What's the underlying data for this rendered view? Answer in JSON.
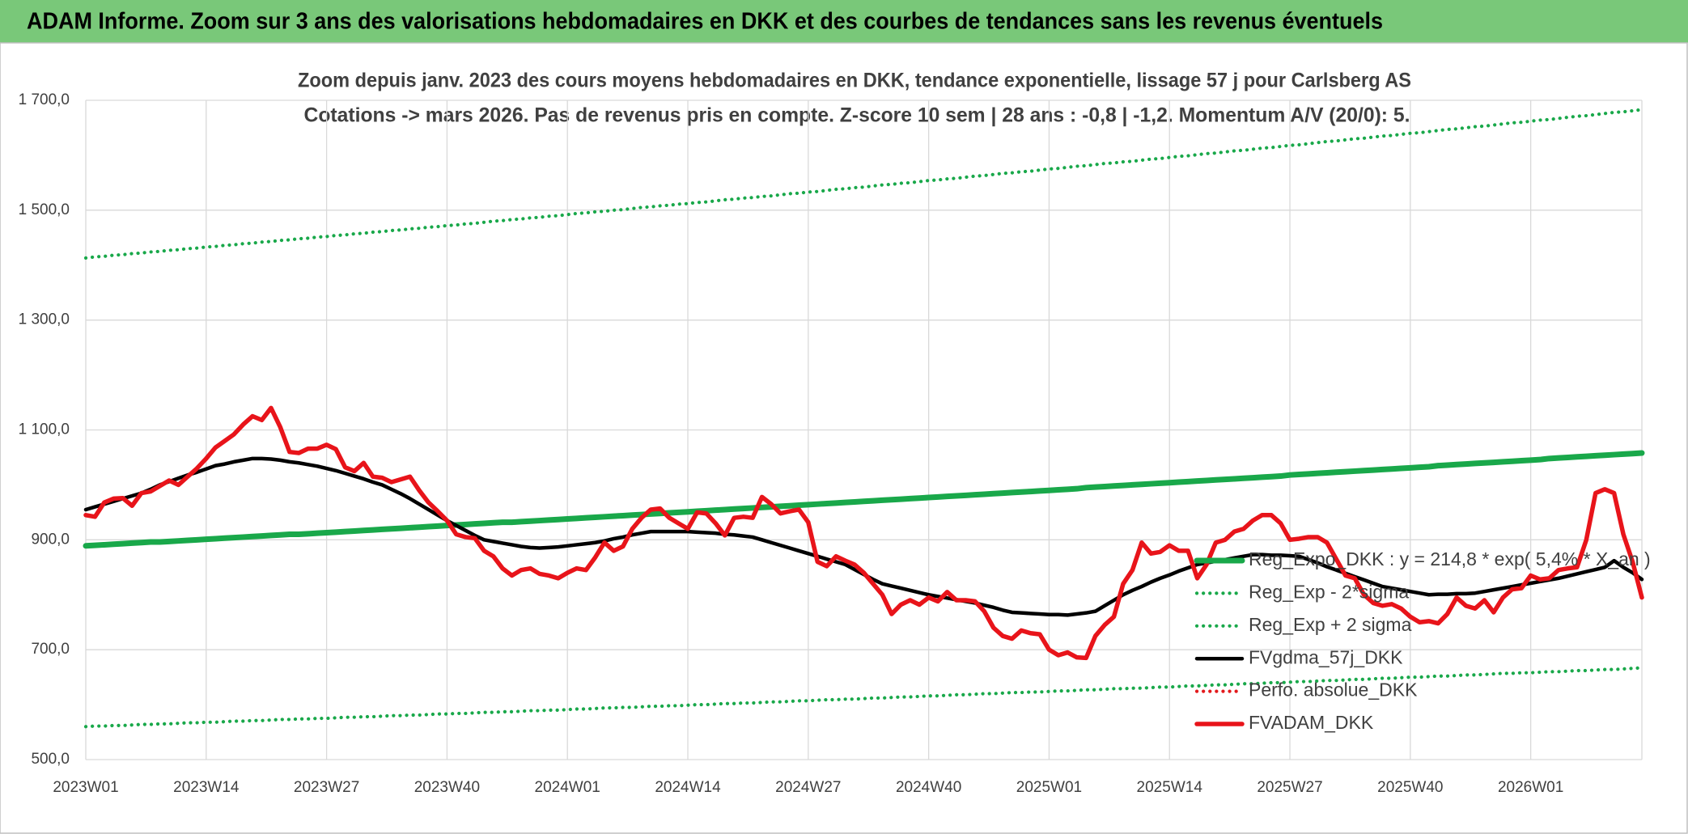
{
  "chart_data": {
    "type": "line",
    "title": "ADAM Informe. Zoom sur 3 ans des valorisations hebdomadaires en DKK et des courbes de tendances sans les revenus éventuels",
    "subtitle": [
      "Zoom depuis janv. 2023 des cours moyens hebdomadaires en DKK, tendance exponentielle, lissage 57 j pour Carlsberg AS",
      "Cotations -> mars 2026. Pas de revenus pris en compte. Z-score 10 sem | 28 ans : -0,8 | -1,2. Momentum A/V (20/0): 5."
    ],
    "ylim": [
      500,
      1700
    ],
    "yticks": [
      {
        "value": 500,
        "label": "500,0"
      },
      {
        "value": 700,
        "label": "700,0"
      },
      {
        "value": 900,
        "label": "900,0"
      },
      {
        "value": 1100,
        "label": "1 100,0"
      },
      {
        "value": 1300,
        "label": "1 300,0"
      },
      {
        "value": 1500,
        "label": "1 500,0"
      },
      {
        "value": 1700,
        "label": "1 700,0"
      }
    ],
    "grid": true,
    "categories": [
      "2023W01",
      null,
      null,
      null,
      null,
      null,
      null,
      null,
      null,
      null,
      null,
      null,
      null,
      "2023W14",
      null,
      null,
      null,
      null,
      null,
      null,
      null,
      null,
      null,
      null,
      null,
      null,
      "2023W27",
      null,
      null,
      null,
      null,
      null,
      null,
      null,
      null,
      null,
      null,
      null,
      null,
      "2023W40",
      null,
      null,
      null,
      null,
      null,
      null,
      null,
      null,
      null,
      null,
      null,
      null,
      "2024W01",
      null,
      null,
      null,
      null,
      null,
      null,
      null,
      null,
      null,
      null,
      null,
      null,
      "2024W14",
      null,
      null,
      null,
      null,
      null,
      null,
      null,
      null,
      null,
      null,
      null,
      null,
      "2024W27",
      null,
      null,
      null,
      null,
      null,
      null,
      null,
      null,
      null,
      null,
      null,
      null,
      "2024W40",
      null,
      null,
      null,
      null,
      null,
      null,
      null,
      null,
      null,
      null,
      null,
      null,
      "2025W01",
      null,
      null,
      null,
      null,
      null,
      null,
      null,
      null,
      null,
      null,
      null,
      null,
      "2025W14",
      null,
      null,
      null,
      null,
      null,
      null,
      null,
      null,
      null,
      null,
      null,
      null,
      "2025W27",
      null,
      null,
      null,
      null,
      null,
      null,
      null,
      null,
      null,
      null,
      null,
      null,
      "2025W40",
      null,
      null,
      null,
      null,
      null,
      null,
      null,
      null,
      null,
      null,
      null,
      null,
      "2026W01",
      null,
      null,
      null,
      null,
      null,
      null,
      null,
      null,
      null,
      null,
      null,
      null
    ],
    "series": [
      {
        "name": "Reg_Expo_DKK : y = 214,8 * exp( 5,4% * X_an )",
        "color": "#19a84a",
        "line_style": "solid",
        "values": [
          889,
          890,
          891,
          892,
          893,
          894,
          895,
          896,
          896,
          897,
          898,
          899,
          900,
          901,
          902,
          903,
          904,
          905,
          906,
          907,
          908,
          909,
          910,
          910,
          911,
          912,
          913,
          914,
          915,
          916,
          917,
          918,
          919,
          920,
          921,
          922,
          923,
          924,
          925,
          926,
          927,
          928,
          929,
          930,
          931,
          932,
          932,
          933,
          934,
          935,
          936,
          937,
          938,
          939,
          940,
          941,
          942,
          943,
          944,
          945,
          946,
          947,
          948,
          949,
          950,
          951,
          952,
          953,
          954,
          955,
          956,
          957,
          958,
          959,
          960,
          961,
          962,
          963,
          964,
          965,
          966,
          967,
          968,
          969,
          970,
          971,
          972,
          973,
          974,
          975,
          976,
          977,
          978,
          979,
          980,
          981,
          982,
          983,
          984,
          985,
          986,
          987,
          988,
          989,
          990,
          991,
          992,
          993,
          995,
          996,
          997,
          998,
          999,
          1000,
          1001,
          1002,
          1003,
          1004,
          1005,
          1006,
          1007,
          1008,
          1009,
          1010,
          1011,
          1012,
          1013,
          1014,
          1015,
          1016,
          1018,
          1019,
          1020,
          1021,
          1022,
          1023,
          1024,
          1025,
          1026,
          1027,
          1028,
          1029,
          1030,
          1031,
          1032,
          1033,
          1035,
          1036,
          1037,
          1038,
          1039,
          1040,
          1041,
          1042,
          1043,
          1044,
          1045,
          1046,
          1048,
          1049,
          1050,
          1051,
          1052,
          1053,
          1054,
          1055,
          1056,
          1057,
          1058
        ]
      },
      {
        "name": "Reg_Exp - 2*sigma",
        "color": "#19a84a",
        "line_style": "dotted",
        "values": [
          560,
          561,
          561,
          562,
          562,
          563,
          564,
          564,
          565,
          565,
          566,
          567,
          567,
          568,
          568,
          569,
          570,
          570,
          571,
          571,
          572,
          573,
          573,
          574,
          574,
          575,
          575,
          576,
          577,
          577,
          578,
          578,
          579,
          580,
          580,
          581,
          581,
          582,
          583,
          583,
          584,
          584,
          585,
          586,
          586,
          587,
          587,
          588,
          589,
          589,
          590,
          590,
          591,
          592,
          592,
          593,
          594,
          594,
          595,
          595,
          596,
          597,
          597,
          598,
          598,
          599,
          600,
          600,
          601,
          602,
          602,
          603,
          603,
          604,
          605,
          605,
          606,
          607,
          607,
          608,
          609,
          609,
          610,
          610,
          611,
          612,
          612,
          613,
          614,
          614,
          615,
          616,
          616,
          617,
          618,
          618,
          619,
          620,
          620,
          621,
          622,
          622,
          623,
          623,
          624,
          625,
          625,
          626,
          627,
          627,
          628,
          629,
          629,
          630,
          630,
          631,
          632,
          632,
          633,
          634,
          634,
          635,
          636,
          636,
          637,
          638,
          638,
          639,
          640,
          640,
          641,
          642,
          642,
          643,
          644,
          644,
          645,
          646,
          646,
          647,
          648,
          648,
          649,
          650,
          650,
          651,
          652,
          652,
          653,
          654,
          654,
          655,
          656,
          657,
          657,
          658,
          658,
          659,
          660,
          660,
          661,
          662,
          662,
          663,
          664,
          664,
          665,
          666,
          667
        ]
      },
      {
        "name": "Reg_Exp + 2 sigma",
        "color": "#19a84a",
        "line_style": "dotted",
        "values": [
          1413,
          1415,
          1416,
          1418,
          1419,
          1421,
          1422,
          1424,
          1425,
          1427,
          1428,
          1430,
          1431,
          1433,
          1434,
          1436,
          1437,
          1439,
          1440,
          1442,
          1443,
          1445,
          1446,
          1448,
          1449,
          1451,
          1452,
          1454,
          1455,
          1457,
          1458,
          1460,
          1461,
          1463,
          1464,
          1466,
          1467,
          1469,
          1470,
          1472,
          1473,
          1475,
          1476,
          1478,
          1480,
          1481,
          1483,
          1484,
          1486,
          1487,
          1489,
          1490,
          1492,
          1494,
          1495,
          1497,
          1498,
          1500,
          1501,
          1503,
          1505,
          1506,
          1508,
          1509,
          1511,
          1512,
          1514,
          1515,
          1517,
          1519,
          1520,
          1522,
          1523,
          1525,
          1526,
          1528,
          1530,
          1531,
          1533,
          1534,
          1536,
          1538,
          1539,
          1541,
          1542,
          1544,
          1546,
          1547,
          1549,
          1550,
          1552,
          1554,
          1555,
          1557,
          1558,
          1560,
          1562,
          1563,
          1565,
          1567,
          1568,
          1570,
          1571,
          1573,
          1575,
          1576,
          1578,
          1580,
          1581,
          1583,
          1585,
          1586,
          1588,
          1589,
          1591,
          1593,
          1594,
          1596,
          1598,
          1599,
          1601,
          1603,
          1604,
          1606,
          1608,
          1609,
          1611,
          1613,
          1614,
          1616,
          1618,
          1619,
          1621,
          1623,
          1625,
          1626,
          1628,
          1630,
          1631,
          1633,
          1635,
          1636,
          1638,
          1640,
          1641,
          1643,
          1645,
          1647,
          1648,
          1650,
          1652,
          1653,
          1655,
          1657,
          1659,
          1660,
          1662,
          1664,
          1665,
          1667,
          1669,
          1671,
          1672,
          1674,
          1676,
          1678,
          1679,
          1681,
          1683
        ]
      },
      {
        "name": "FVgdma_57j_DKK",
        "color": "#000000",
        "line_style": "solid",
        "values": [
          955,
          960,
          965,
          970,
          975,
          980,
          985,
          992,
          1000,
          1006,
          1012,
          1018,
          1023,
          1029,
          1035,
          1038,
          1042,
          1045,
          1048,
          1048,
          1047,
          1045,
          1042,
          1040,
          1037,
          1034,
          1030,
          1026,
          1021,
          1016,
          1011,
          1005,
          1000,
          992,
          984,
          975,
          965,
          955,
          945,
          935,
          926,
          917,
          908,
          900,
          897,
          894,
          891,
          888,
          886,
          885,
          886,
          887,
          889,
          891,
          893,
          895,
          898,
          902,
          905,
          909,
          912,
          915,
          915,
          915,
          915,
          915,
          914,
          913,
          912,
          910,
          909,
          907,
          905,
          900,
          895,
          890,
          885,
          880,
          875,
          870,
          865,
          860,
          855,
          846,
          837,
          828,
          820,
          816,
          812,
          808,
          804,
          800,
          797,
          794,
          791,
          788,
          785,
          781,
          777,
          772,
          768,
          767,
          766,
          765,
          764,
          764,
          763,
          765,
          767,
          770,
          780,
          790,
          800,
          808,
          815,
          823,
          830,
          836,
          843,
          849,
          855,
          858,
          861,
          864,
          867,
          870,
          873,
          873,
          872,
          872,
          871,
          870,
          864,
          858,
          851,
          845,
          839,
          833,
          827,
          821,
          815,
          812,
          809,
          806,
          803,
          800,
          801,
          801,
          802,
          802,
          803,
          806,
          809,
          812,
          815,
          818,
          821,
          824,
          827,
          830,
          834,
          838,
          842,
          846,
          850,
          862,
          850,
          840,
          828
        ]
      },
      {
        "name": "Perfo. absolue_DKK",
        "color": "#e31a1c",
        "line_style": "dotted",
        "values": [
          null,
          null,
          null,
          null,
          null,
          null,
          null,
          null,
          null,
          null,
          null,
          null,
          null,
          null,
          null,
          null,
          null,
          null,
          null,
          null,
          null,
          null,
          null,
          null,
          null,
          null,
          null,
          null,
          null,
          null,
          null,
          null,
          null,
          null,
          null,
          null,
          null,
          null,
          null,
          null,
          null,
          null,
          null,
          null,
          null,
          null,
          null,
          null,
          null,
          null,
          null,
          null,
          null,
          null,
          null,
          null,
          null,
          null,
          null,
          null,
          null,
          null,
          null,
          null,
          null,
          null,
          null,
          null,
          null,
          null,
          null,
          null,
          null,
          null,
          null,
          null,
          null,
          null,
          null,
          null,
          null,
          null,
          null,
          null,
          null,
          null,
          null,
          null,
          null,
          null,
          null,
          null,
          null,
          null,
          null,
          null,
          null,
          null,
          null,
          null,
          null,
          null,
          null,
          null,
          null,
          null,
          null,
          null,
          null,
          null,
          null,
          null,
          null,
          null,
          null,
          null,
          null,
          null,
          null,
          null,
          null,
          null,
          null,
          null,
          null,
          null,
          null,
          null,
          null,
          null,
          null,
          null,
          null,
          null,
          null,
          null,
          null,
          null,
          null,
          null,
          null,
          null,
          null,
          null,
          null,
          null,
          null,
          null,
          null,
          null,
          null,
          null,
          null,
          null,
          null,
          null,
          null,
          null,
          null,
          null,
          null,
          null,
          null,
          null,
          null,
          null,
          null,
          null,
          null
        ]
      },
      {
        "name": "FVADAM_DKK",
        "color": "#e8141a",
        "line_style": "solid",
        "values": [
          945,
          942,
          968,
          975,
          976,
          962,
          985,
          988,
          998,
          1008,
          1000,
          1015,
          1030,
          1048,
          1068,
          1080,
          1092,
          1110,
          1125,
          1118,
          1140,
          1105,
          1060,
          1058,
          1066,
          1066,
          1073,
          1065,
          1032,
          1025,
          1040,
          1015,
          1013,
          1005,
          1010,
          1015,
          990,
          968,
          952,
          935,
          910,
          905,
          903,
          880,
          870,
          848,
          835,
          845,
          848,
          838,
          835,
          830,
          840,
          848,
          845,
          868,
          895,
          880,
          888,
          920,
          940,
          955,
          957,
          940,
          930,
          920,
          950,
          948,
          930,
          908,
          940,
          942,
          940,
          978,
          965,
          948,
          952,
          955,
          932,
          860,
          852,
          870,
          862,
          855,
          840,
          820,
          800,
          765,
          782,
          790,
          782,
          795,
          788,
          805,
          790,
          790,
          788,
          770,
          740,
          725,
          720,
          735,
          730,
          728,
          700,
          690,
          695,
          686,
          685,
          725,
          745,
          760,
          820,
          845,
          895,
          875,
          878,
          890,
          880,
          880,
          830,
          855,
          895,
          900,
          915,
          920,
          935,
          945,
          945,
          930,
          900,
          902,
          905,
          905,
          895,
          865,
          835,
          830,
          800,
          785,
          780,
          783,
          775,
          760,
          750,
          752,
          748,
          765,
          795,
          780,
          775,
          790,
          768,
          795,
          810,
          812,
          835,
          828,
          830,
          845,
          848,
          850,
          900,
          985,
          992,
          985,
          910,
          860,
          795
        ]
      }
    ]
  }
}
